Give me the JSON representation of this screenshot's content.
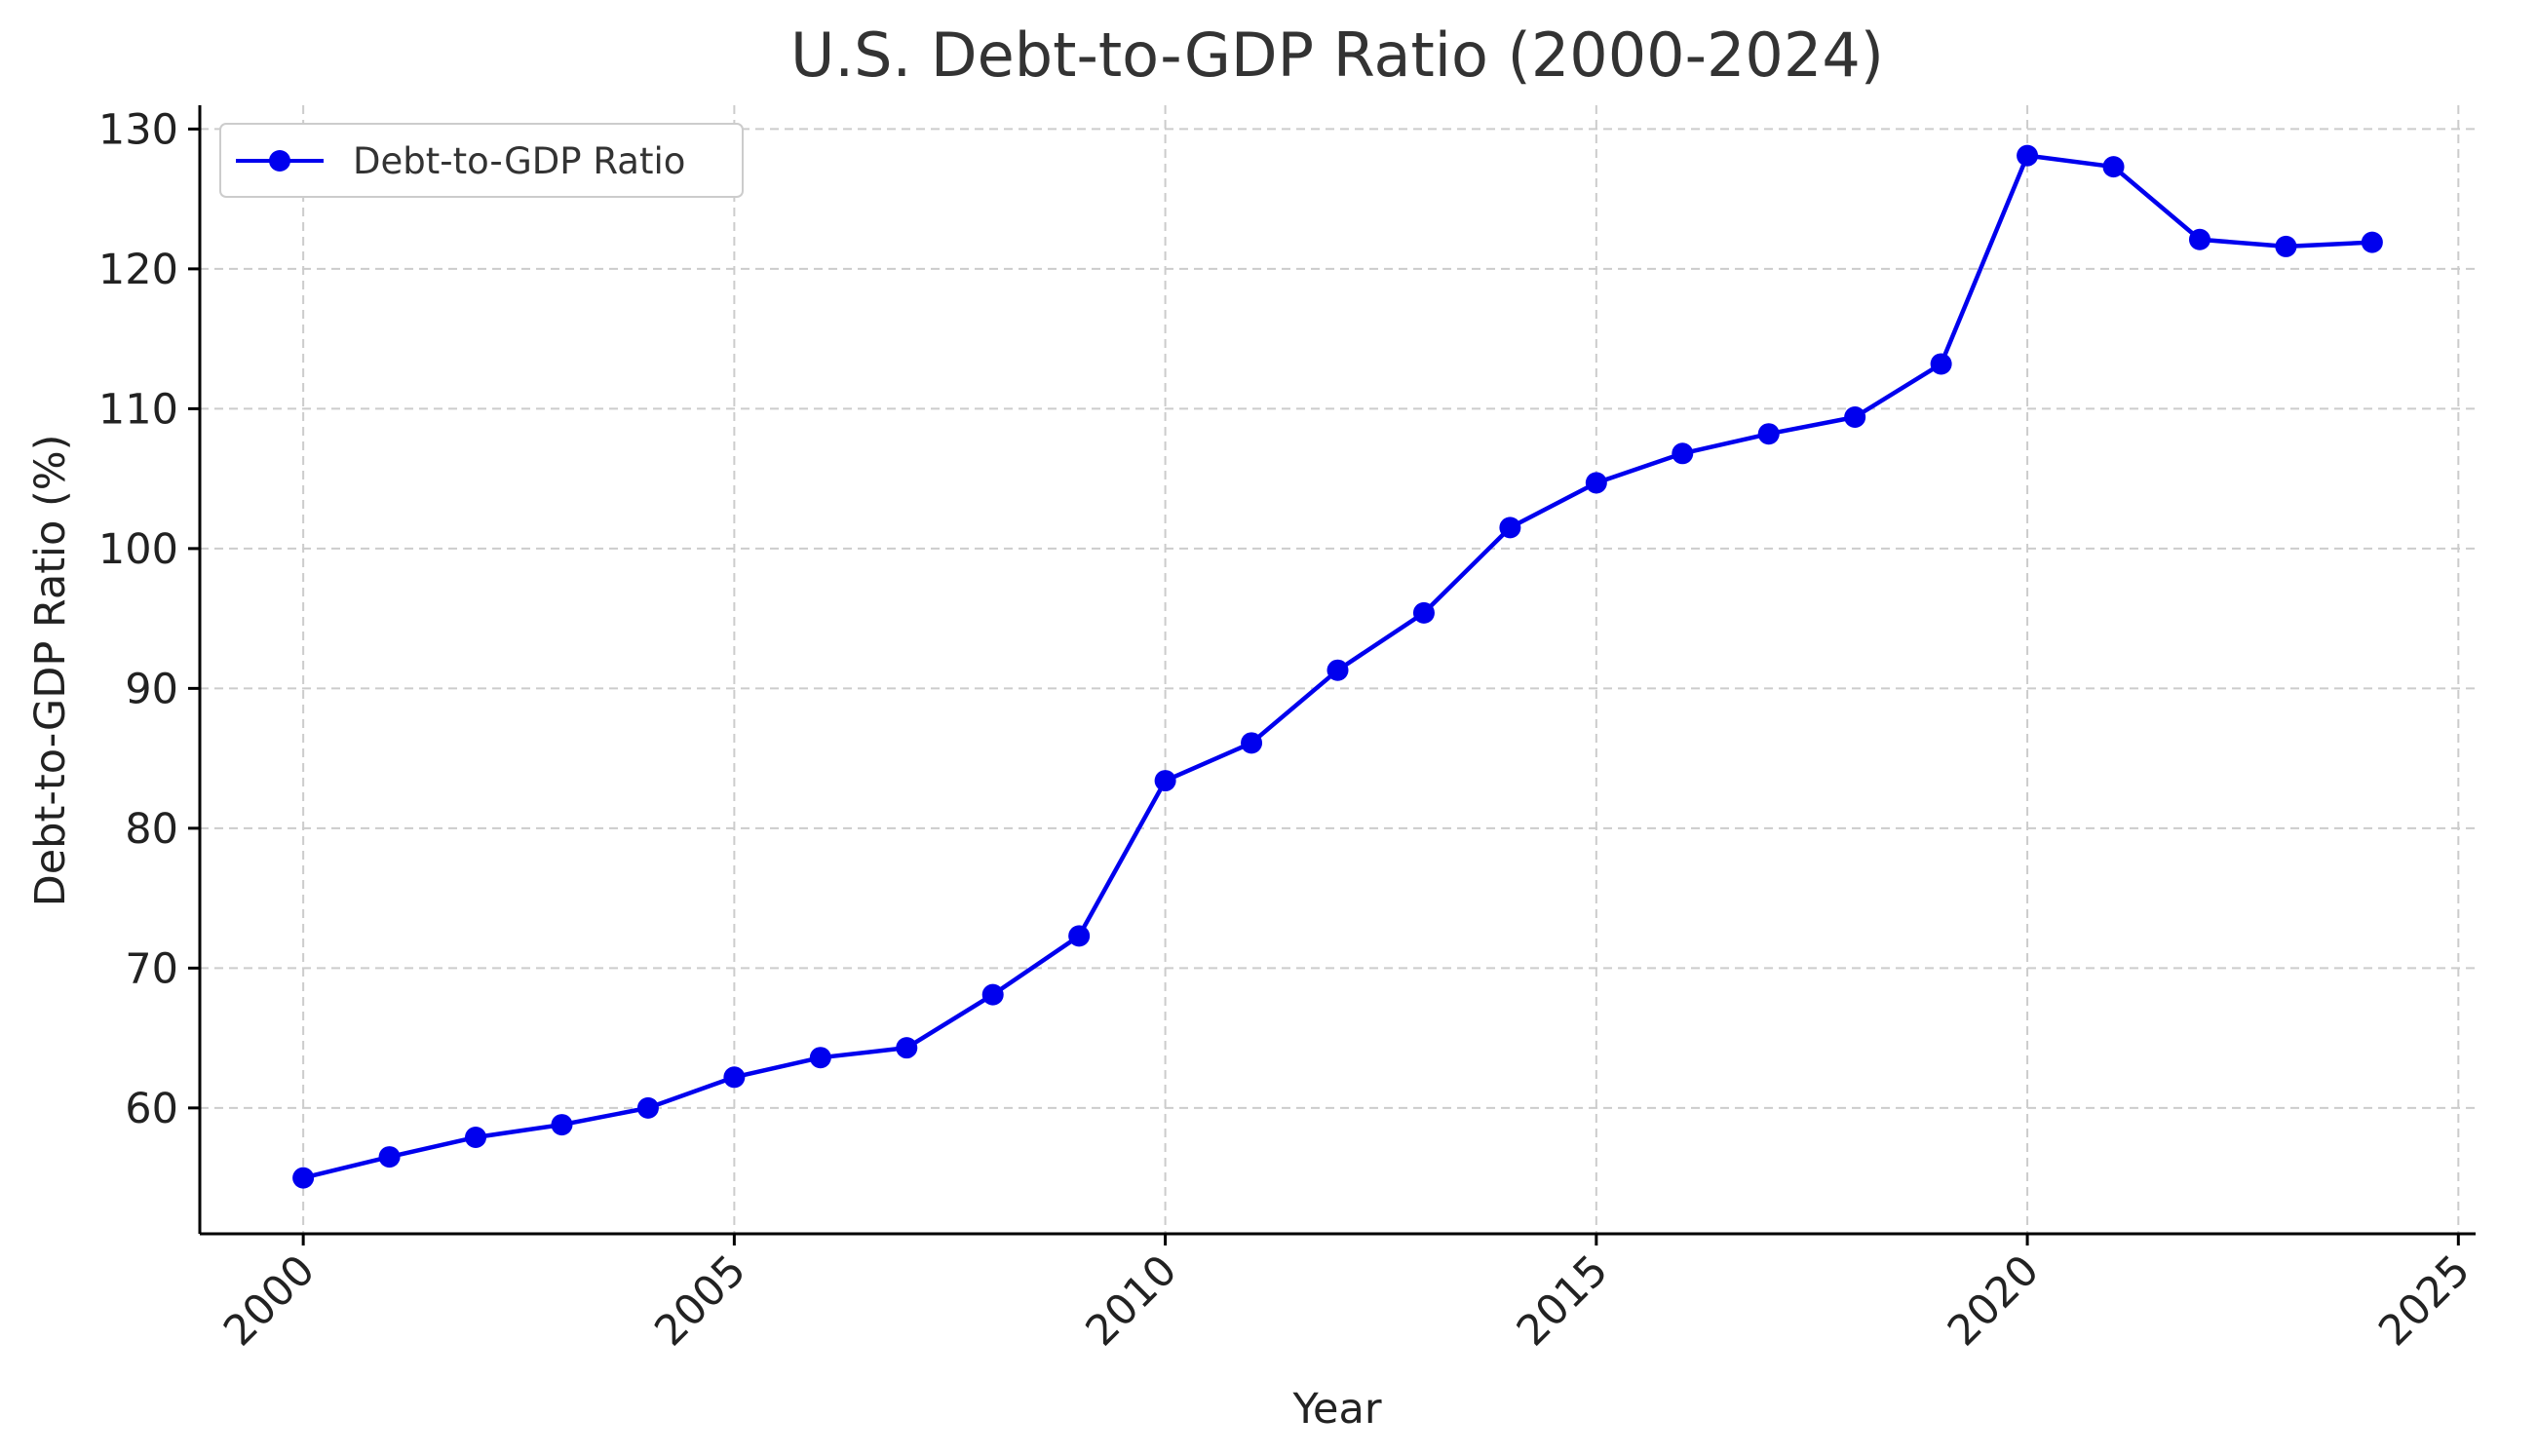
{
  "chart_data": {
    "type": "line",
    "title": "U.S. Debt-to-GDP Ratio (2000-2024)",
    "xlabel": "Year",
    "ylabel": "Debt-to-GDP Ratio (%)",
    "x": [
      2000,
      2001,
      2002,
      2003,
      2004,
      2005,
      2006,
      2007,
      2008,
      2009,
      2010,
      2011,
      2012,
      2013,
      2014,
      2015,
      2016,
      2017,
      2018,
      2019,
      2020,
      2021,
      2022,
      2023,
      2024
    ],
    "series": [
      {
        "name": "Debt-to-GDP Ratio",
        "color": "#0000ee",
        "marker": "circle",
        "values": [
          55.0,
          56.5,
          57.9,
          58.8,
          60.0,
          62.2,
          63.6,
          64.3,
          68.1,
          72.3,
          83.4,
          86.1,
          91.3,
          95.4,
          101.5,
          104.7,
          106.8,
          108.2,
          109.4,
          113.2,
          128.1,
          127.3,
          122.1,
          121.6,
          121.9
        ]
      }
    ],
    "xlim": [
      1998.8,
      2025.2
    ],
    "ylim": [
      51.0,
      131.7
    ],
    "xticks": [
      "2000",
      "2005",
      "2010",
      "2015",
      "2020",
      "2025"
    ],
    "yticks": [
      "60",
      "70",
      "80",
      "90",
      "100",
      "110",
      "120",
      "130"
    ],
    "grid": true,
    "legend_position": "top-left"
  }
}
